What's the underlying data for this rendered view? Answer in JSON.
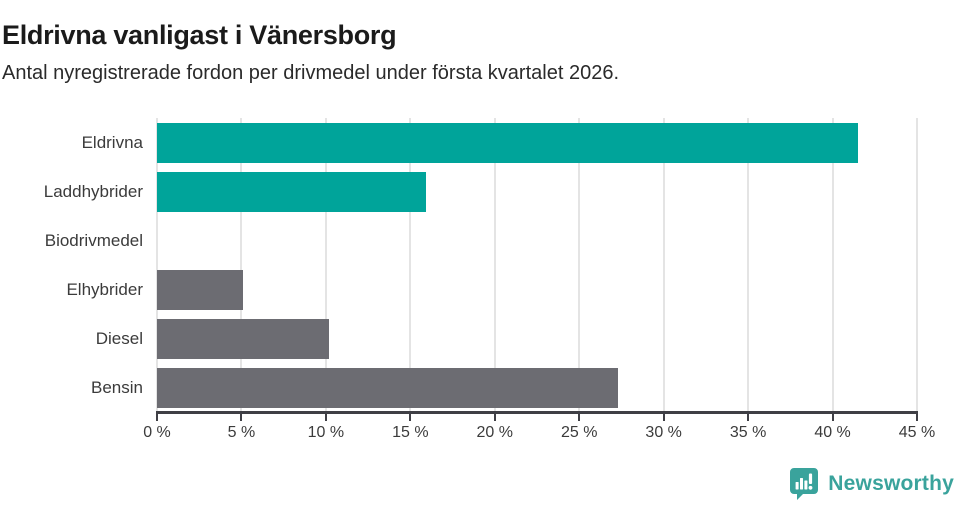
{
  "header": {
    "title": "Eldrivna vanligast i Vänersborg",
    "subtitle": "Antal nyregistrerade fordon per drivmedel under första kvartalet 2026."
  },
  "chart_data": {
    "type": "bar",
    "orientation": "horizontal",
    "title": "Eldrivna vanligast i Vänersborg",
    "subtitle": "Antal nyregistrerade fordon per drivmedel under första kvartalet 2026.",
    "categories": [
      "Eldrivna",
      "Laddhybrider",
      "Biodrivmedel",
      "Elhybrider",
      "Diesel",
      "Bensin"
    ],
    "values": [
      41.5,
      15.9,
      0,
      5.1,
      10.2,
      27.3
    ],
    "unit": "%",
    "bar_colors": [
      "#00a49a",
      "#00a49a",
      "#00a49a",
      "#6c6c72",
      "#6c6c72",
      "#6c6c72"
    ],
    "xlim": [
      0,
      45
    ],
    "x_ticks": [
      0,
      5,
      10,
      15,
      20,
      25,
      30,
      35,
      40,
      45
    ],
    "x_tick_labels": [
      "0 %",
      "5 %",
      "10 %",
      "15 %",
      "20 %",
      "25 %",
      "30 %",
      "35 %",
      "40 %",
      "45 %"
    ],
    "grid": true,
    "legend": false,
    "xlabel": "",
    "ylabel": ""
  },
  "colors": {
    "highlight": "#00a49a",
    "muted": "#6c6c72",
    "grid": "#e4e4e4",
    "axis": "#3f3f45",
    "text": "#3b3b3b",
    "brand": "#3aa39c"
  },
  "footer": {
    "brand_label": "Newsworthy"
  }
}
